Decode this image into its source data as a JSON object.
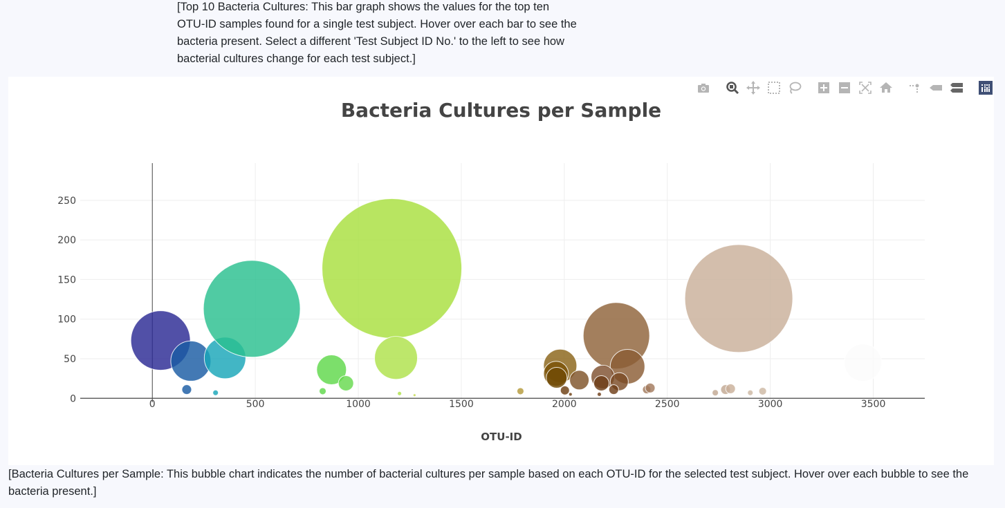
{
  "captions": {
    "top": "[Top 10 Bacteria Cultures: This bar graph shows the values for the top ten OTU-ID samples found for a single test subject. Hover over each bar to see the bacteria present. Select a different 'Test Subject ID No.' to the left to see how bacterial cultures change for each test subject.]",
    "bottom": "[Bacteria Cultures per Sample: This bubble chart indicates the number of bacterial cultures per sample based on each OTU-ID for the selected test subject. Hover over each bubble to see the bacteria present.]"
  },
  "modebar": {
    "buttons": [
      {
        "name": "camera-icon",
        "title": "Download plot as a png"
      },
      {
        "name": "zoom-icon",
        "title": "Zoom",
        "active": true
      },
      {
        "name": "pan-icon",
        "title": "Pan"
      },
      {
        "name": "box-select-icon",
        "title": "Box Select"
      },
      {
        "name": "lasso-select-icon",
        "title": "Lasso Select"
      },
      {
        "name": "zoom-in-icon",
        "title": "Zoom in"
      },
      {
        "name": "zoom-out-icon",
        "title": "Zoom out"
      },
      {
        "name": "autoscale-icon",
        "title": "Autoscale"
      },
      {
        "name": "reset-axes-icon",
        "title": "Reset axes"
      },
      {
        "name": "spike-lines-icon",
        "title": "Toggle Spike Lines"
      },
      {
        "name": "hover-closest-icon",
        "title": "Show closest data on hover"
      },
      {
        "name": "hover-compare-icon",
        "title": "Compare data on hover"
      },
      {
        "name": "plotly-logo-icon",
        "title": "Produced with Plotly"
      }
    ],
    "colors": {
      "icon": "#b5b5b5",
      "active": "#555555",
      "logo_bg": "#3f4f75"
    }
  },
  "chart_data": {
    "type": "scatter",
    "mode": "bubble",
    "title": "Bacteria Cultures per Sample",
    "xlabel": "OTU-ID",
    "ylabel": "",
    "xlim": [
      -350,
      3750
    ],
    "ylim": [
      -5,
      297
    ],
    "x_ticks": [
      0,
      500,
      1000,
      1500,
      2000,
      2500,
      3000,
      3500
    ],
    "y_ticks": [
      0,
      50,
      100,
      150,
      200,
      250
    ],
    "grid": true,
    "legend": false,
    "colorscale": "Earth",
    "points": [
      {
        "x": 40,
        "y": 73,
        "size": 86,
        "color": "#2b2a94"
      },
      {
        "x": 187,
        "y": 47,
        "size": 58,
        "color": "#1a5ba3"
      },
      {
        "x": 167,
        "y": 11,
        "size": 14,
        "color": "#1a5ba3"
      },
      {
        "x": 353,
        "y": 51,
        "size": 60,
        "color": "#19a6b8"
      },
      {
        "x": 307,
        "y": 7,
        "size": 8,
        "color": "#19a6b8"
      },
      {
        "x": 483,
        "y": 113,
        "size": 140,
        "color": "#2ac08f"
      },
      {
        "x": 870,
        "y": 36,
        "size": 43,
        "color": "#5fd84a"
      },
      {
        "x": 940,
        "y": 19,
        "size": 22,
        "color": "#66d94e"
      },
      {
        "x": 827,
        "y": 9,
        "size": 10,
        "color": "#5fd84a"
      },
      {
        "x": 1163,
        "y": 164,
        "size": 202,
        "color": "#a8df3e"
      },
      {
        "x": 1183,
        "y": 51,
        "size": 62,
        "color": "#aee24a"
      },
      {
        "x": 1200,
        "y": 6,
        "size": 6,
        "color": "#aee24a"
      },
      {
        "x": 1273,
        "y": 4,
        "size": 4,
        "color": "#c2d94a"
      },
      {
        "x": 1787,
        "y": 9,
        "size": 10,
        "color": "#b59a3b"
      },
      {
        "x": 1980,
        "y": 41,
        "size": 48,
        "color": "#8a6418"
      },
      {
        "x": 1960,
        "y": 31,
        "size": 36,
        "color": "#7a5206"
      },
      {
        "x": 1963,
        "y": 26,
        "size": 30,
        "color": "#704a05"
      },
      {
        "x": 2073,
        "y": 23,
        "size": 28,
        "color": "#7f5328"
      },
      {
        "x": 2003,
        "y": 10,
        "size": 13,
        "color": "#6e3f12"
      },
      {
        "x": 2030,
        "y": 5,
        "size": 5,
        "color": "#6e3f12"
      },
      {
        "x": 2253,
        "y": 79,
        "size": 96,
        "color": "#8f6339"
      },
      {
        "x": 2307,
        "y": 40,
        "size": 50,
        "color": "#8b5d35"
      },
      {
        "x": 2187,
        "y": 27,
        "size": 34,
        "color": "#7f5030"
      },
      {
        "x": 2180,
        "y": 19,
        "size": 22,
        "color": "#6e3d17"
      },
      {
        "x": 2267,
        "y": 21,
        "size": 26,
        "color": "#7a4a25"
      },
      {
        "x": 2240,
        "y": 11,
        "size": 14,
        "color": "#6e3d17"
      },
      {
        "x": 2170,
        "y": 5,
        "size": 6,
        "color": "#6e3d17"
      },
      {
        "x": 2400,
        "y": 11,
        "size": 12,
        "color": "#a27a5d"
      },
      {
        "x": 2417,
        "y": 13,
        "size": 14,
        "color": "#a27a5d"
      },
      {
        "x": 2847,
        "y": 126,
        "size": 156,
        "color": "#c9b09a"
      },
      {
        "x": 2733,
        "y": 7,
        "size": 9,
        "color": "#c2a892"
      },
      {
        "x": 2783,
        "y": 11,
        "size": 14,
        "color": "#c2a892"
      },
      {
        "x": 2807,
        "y": 12,
        "size": 14,
        "color": "#c9b09a"
      },
      {
        "x": 2903,
        "y": 7,
        "size": 8,
        "color": "#cdb8a4"
      },
      {
        "x": 2963,
        "y": 9,
        "size": 11,
        "color": "#cdb8a4"
      },
      {
        "x": 3450,
        "y": 45,
        "size": 54,
        "color": "#fbfbfb"
      }
    ]
  }
}
